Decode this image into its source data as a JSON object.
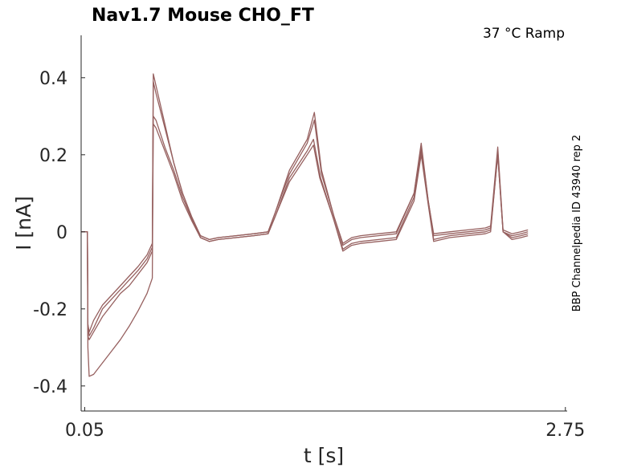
{
  "chart_data": {
    "type": "line",
    "title": "Nav1.7  Mouse  CHO_FT",
    "annotation": "37 °C  Ramp",
    "side_label": "BBP Channelpedia ID 43940 rep 2",
    "xlabel": "t [s]",
    "ylabel": "I [nA]",
    "x_ticks": [
      {
        "value": 0.05,
        "label": "0.05"
      },
      {
        "value": 2.75,
        "label": "2.75"
      }
    ],
    "y_ticks": [
      {
        "value": 0.4,
        "label": "0.4"
      },
      {
        "value": 0.2,
        "label": "0.2"
      },
      {
        "value": 0,
        "label": "0"
      },
      {
        "value": -0.2,
        "label": "-0.2"
      },
      {
        "value": -0.4,
        "label": "-0.4"
      }
    ],
    "xlim": [
      0.03,
      2.76
    ],
    "ylim": [
      -0.465,
      0.51
    ],
    "line_color": "#96605f",
    "series": [
      {
        "points": [
          [
            0.03,
            0.0
          ],
          [
            0.065,
            0.0
          ],
          [
            0.068,
            -0.3
          ],
          [
            0.075,
            -0.375
          ],
          [
            0.1,
            -0.37
          ],
          [
            0.15,
            -0.34
          ],
          [
            0.2,
            -0.31
          ],
          [
            0.25,
            -0.28
          ],
          [
            0.3,
            -0.245
          ],
          [
            0.35,
            -0.205
          ],
          [
            0.4,
            -0.16
          ],
          [
            0.43,
            -0.12
          ],
          [
            0.435,
            0.28
          ],
          [
            0.45,
            0.27
          ],
          [
            0.5,
            0.21
          ],
          [
            0.55,
            0.15
          ],
          [
            0.6,
            0.08
          ],
          [
            0.65,
            0.03
          ],
          [
            0.7,
            -0.015
          ],
          [
            0.75,
            -0.025
          ],
          [
            0.8,
            -0.02
          ],
          [
            0.9,
            -0.015
          ],
          [
            1.0,
            -0.01
          ],
          [
            1.08,
            -0.005
          ],
          [
            1.12,
            0.04
          ],
          [
            1.2,
            0.13
          ],
          [
            1.3,
            0.2
          ],
          [
            1.335,
            0.225
          ],
          [
            1.37,
            0.14
          ],
          [
            1.45,
            0.03
          ],
          [
            1.5,
            -0.05
          ],
          [
            1.55,
            -0.035
          ],
          [
            1.6,
            -0.03
          ],
          [
            1.7,
            -0.025
          ],
          [
            1.8,
            -0.02
          ],
          [
            1.9,
            0.08
          ],
          [
            1.94,
            0.2
          ],
          [
            1.98,
            0.07
          ],
          [
            2.01,
            -0.025
          ],
          [
            2.1,
            -0.015
          ],
          [
            2.2,
            -0.01
          ],
          [
            2.3,
            -0.005
          ],
          [
            2.33,
            0.0
          ],
          [
            2.37,
            0.2
          ],
          [
            2.4,
            0.0
          ],
          [
            2.45,
            -0.02
          ],
          [
            2.5,
            -0.015
          ],
          [
            2.54,
            -0.01
          ]
        ]
      },
      {
        "points": [
          [
            0.03,
            0.0
          ],
          [
            0.065,
            0.0
          ],
          [
            0.068,
            -0.24
          ],
          [
            0.075,
            -0.27
          ],
          [
            0.1,
            -0.25
          ],
          [
            0.15,
            -0.2
          ],
          [
            0.2,
            -0.175
          ],
          [
            0.25,
            -0.15
          ],
          [
            0.3,
            -0.125
          ],
          [
            0.35,
            -0.1
          ],
          [
            0.4,
            -0.07
          ],
          [
            0.43,
            -0.04
          ],
          [
            0.435,
            0.39
          ],
          [
            0.45,
            0.36
          ],
          [
            0.5,
            0.27
          ],
          [
            0.55,
            0.18
          ],
          [
            0.6,
            0.1
          ],
          [
            0.65,
            0.04
          ],
          [
            0.7,
            -0.01
          ],
          [
            0.75,
            -0.02
          ],
          [
            0.8,
            -0.015
          ],
          [
            0.9,
            -0.01
          ],
          [
            1.0,
            -0.005
          ],
          [
            1.08,
            0.0
          ],
          [
            1.12,
            0.05
          ],
          [
            1.2,
            0.15
          ],
          [
            1.3,
            0.23
          ],
          [
            1.34,
            0.29
          ],
          [
            1.38,
            0.15
          ],
          [
            1.45,
            0.04
          ],
          [
            1.5,
            -0.035
          ],
          [
            1.55,
            -0.02
          ],
          [
            1.6,
            -0.015
          ],
          [
            1.7,
            -0.01
          ],
          [
            1.8,
            -0.005
          ],
          [
            1.9,
            0.1
          ],
          [
            1.94,
            0.22
          ],
          [
            1.98,
            0.08
          ],
          [
            2.01,
            -0.01
          ],
          [
            2.1,
            -0.005
          ],
          [
            2.2,
            0.0
          ],
          [
            2.3,
            0.005
          ],
          [
            2.33,
            0.01
          ],
          [
            2.37,
            0.21
          ],
          [
            2.4,
            0.0
          ],
          [
            2.45,
            -0.01
          ],
          [
            2.5,
            -0.005
          ],
          [
            2.54,
            0.0
          ]
        ]
      },
      {
        "points": [
          [
            0.03,
            0.0
          ],
          [
            0.065,
            0.0
          ],
          [
            0.068,
            -0.24
          ],
          [
            0.075,
            -0.26
          ],
          [
            0.1,
            -0.23
          ],
          [
            0.15,
            -0.19
          ],
          [
            0.2,
            -0.165
          ],
          [
            0.25,
            -0.14
          ],
          [
            0.3,
            -0.115
          ],
          [
            0.35,
            -0.09
          ],
          [
            0.4,
            -0.06
          ],
          [
            0.43,
            -0.03
          ],
          [
            0.435,
            0.41
          ],
          [
            0.45,
            0.38
          ],
          [
            0.5,
            0.28
          ],
          [
            0.55,
            0.18
          ],
          [
            0.6,
            0.1
          ],
          [
            0.65,
            0.04
          ],
          [
            0.7,
            -0.01
          ],
          [
            0.75,
            -0.02
          ],
          [
            0.8,
            -0.015
          ],
          [
            0.9,
            -0.01
          ],
          [
            1.0,
            -0.005
          ],
          [
            1.08,
            0.0
          ],
          [
            1.12,
            0.05
          ],
          [
            1.2,
            0.16
          ],
          [
            1.3,
            0.24
          ],
          [
            1.34,
            0.31
          ],
          [
            1.38,
            0.16
          ],
          [
            1.45,
            0.04
          ],
          [
            1.5,
            -0.03
          ],
          [
            1.55,
            -0.015
          ],
          [
            1.6,
            -0.01
          ],
          [
            1.7,
            -0.005
          ],
          [
            1.8,
            0.0
          ],
          [
            1.9,
            0.1
          ],
          [
            1.94,
            0.23
          ],
          [
            1.98,
            0.08
          ],
          [
            2.01,
            -0.005
          ],
          [
            2.1,
            0.0
          ],
          [
            2.2,
            0.005
          ],
          [
            2.3,
            0.01
          ],
          [
            2.33,
            0.015
          ],
          [
            2.37,
            0.22
          ],
          [
            2.4,
            0.005
          ],
          [
            2.45,
            -0.005
          ],
          [
            2.5,
            0.0
          ],
          [
            2.54,
            0.005
          ]
        ]
      },
      {
        "points": [
          [
            0.03,
            0.0
          ],
          [
            0.065,
            0.0
          ],
          [
            0.068,
            -0.27
          ],
          [
            0.075,
            -0.28
          ],
          [
            0.1,
            -0.26
          ],
          [
            0.15,
            -0.22
          ],
          [
            0.2,
            -0.19
          ],
          [
            0.25,
            -0.16
          ],
          [
            0.3,
            -0.14
          ],
          [
            0.35,
            -0.11
          ],
          [
            0.4,
            -0.08
          ],
          [
            0.43,
            -0.05
          ],
          [
            0.435,
            0.3
          ],
          [
            0.45,
            0.29
          ],
          [
            0.5,
            0.22
          ],
          [
            0.55,
            0.16
          ],
          [
            0.6,
            0.09
          ],
          [
            0.65,
            0.035
          ],
          [
            0.7,
            -0.015
          ],
          [
            0.75,
            -0.025
          ],
          [
            0.8,
            -0.02
          ],
          [
            0.9,
            -0.015
          ],
          [
            1.0,
            -0.01
          ],
          [
            1.08,
            -0.005
          ],
          [
            1.12,
            0.04
          ],
          [
            1.2,
            0.14
          ],
          [
            1.3,
            0.21
          ],
          [
            1.335,
            0.24
          ],
          [
            1.375,
            0.14
          ],
          [
            1.45,
            0.03
          ],
          [
            1.5,
            -0.045
          ],
          [
            1.55,
            -0.03
          ],
          [
            1.6,
            -0.025
          ],
          [
            1.7,
            -0.02
          ],
          [
            1.8,
            -0.015
          ],
          [
            1.9,
            0.09
          ],
          [
            1.94,
            0.21
          ],
          [
            1.98,
            0.075
          ],
          [
            2.01,
            -0.02
          ],
          [
            2.1,
            -0.01
          ],
          [
            2.2,
            -0.005
          ],
          [
            2.3,
            0.0
          ],
          [
            2.33,
            0.005
          ],
          [
            2.37,
            0.2
          ],
          [
            2.4,
            0.0
          ],
          [
            2.45,
            -0.015
          ],
          [
            2.5,
            -0.01
          ],
          [
            2.54,
            -0.005
          ]
        ]
      }
    ]
  }
}
